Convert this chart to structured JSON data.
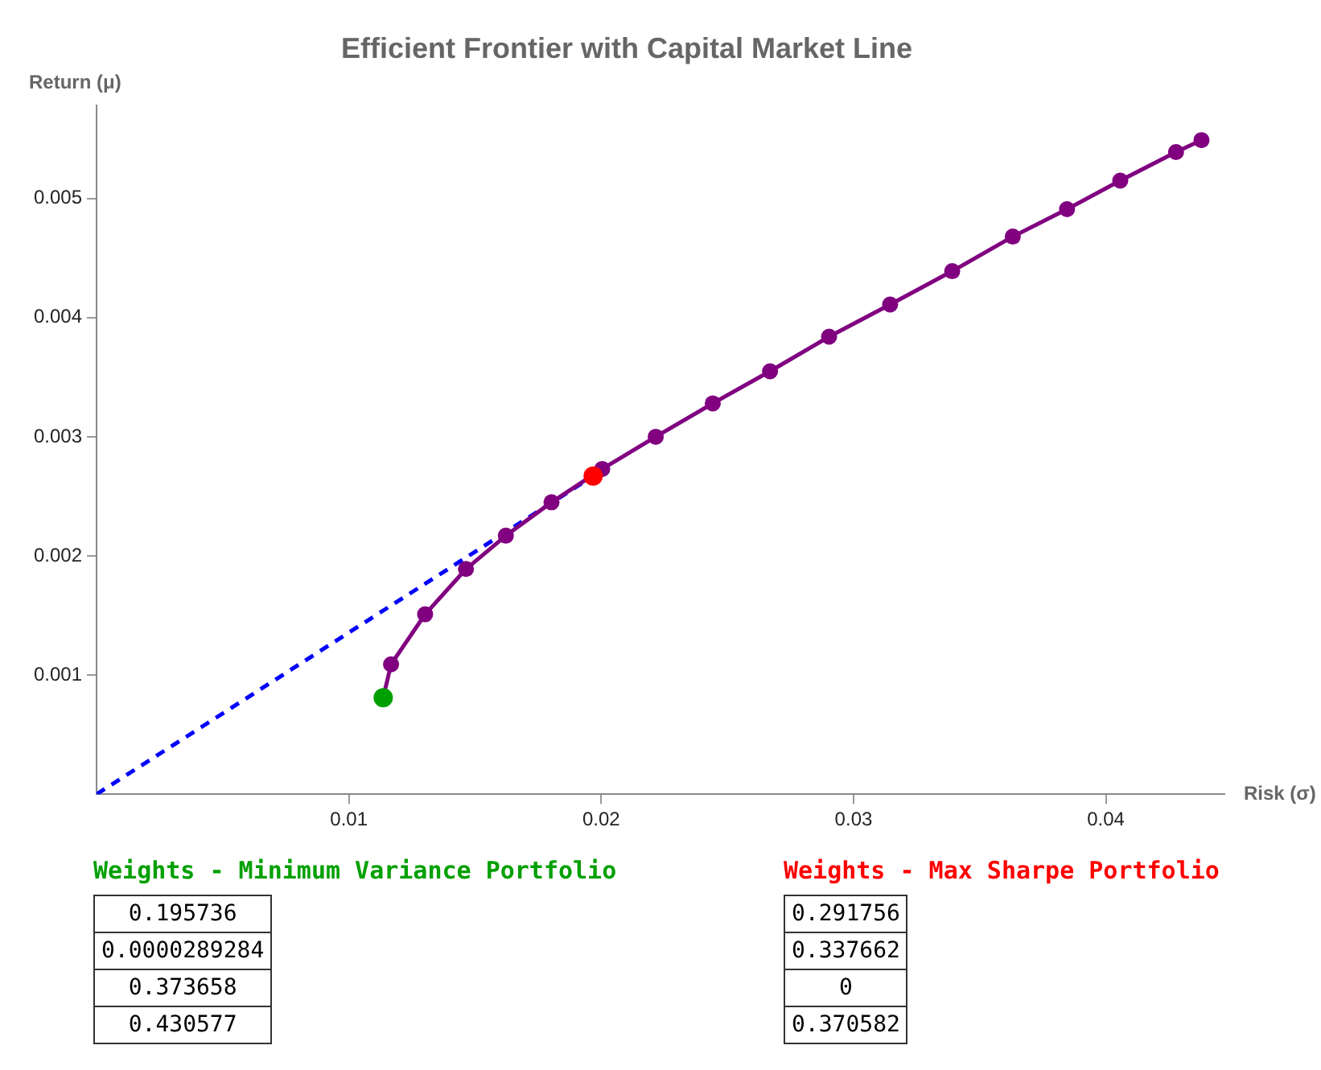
{
  "chart_data": {
    "type": "line",
    "title": "Efficient Frontier with Capital Market Line",
    "xlabel": "Risk (σ)",
    "ylabel": "Return (μ)",
    "xlim": [
      0,
      0.0447
    ],
    "ylim": [
      0,
      0.00578
    ],
    "xticks": [
      0.01,
      0.02,
      0.03,
      0.04
    ],
    "yticks": [
      0.001,
      0.002,
      0.003,
      0.004,
      0.005
    ],
    "grid": false,
    "legend": false,
    "series": [
      {
        "type": "line",
        "color": "#0000ff",
        "line_style": "dashed",
        "marker": "none",
        "x": [
          0,
          0.01968
        ],
        "values": [
          0,
          0.00267
        ]
      },
      {
        "type": "line",
        "color": "#800080",
        "line_style": "solid",
        "marker": "circle",
        "x": [
          0.01136,
          0.01167,
          0.01302,
          0.01464,
          0.01622,
          0.01803,
          0.02004,
          0.02216,
          0.02442,
          0.02669,
          0.02903,
          0.03145,
          0.03391,
          0.03631,
          0.03846,
          0.04057,
          0.04278,
          0.04379
        ],
        "values": [
          0.00081,
          0.00109,
          0.00151,
          0.00189,
          0.00217,
          0.00245,
          0.00273,
          0.003,
          0.00328,
          0.00355,
          0.00384,
          0.00411,
          0.00439,
          0.00468,
          0.00491,
          0.00515,
          0.00539,
          0.00549
        ]
      },
      {
        "type": "scatter",
        "color": "#00a000",
        "marker": "circle",
        "x": [
          0.01136
        ],
        "values": [
          0.00081
        ]
      },
      {
        "type": "scatter",
        "color": "#ff0000",
        "marker": "circle",
        "x": [
          0.01968
        ],
        "values": [
          0.00267
        ]
      }
    ],
    "annotations": [
      "Weights - Minimum Variance Portfolio",
      "0.195736",
      "0.0000289284",
      "0.373658",
      "0.430577",
      "Weights - Max Sharpe Portfolio",
      "0.291756",
      "0.337662",
      "0",
      "0.370582"
    ]
  }
}
